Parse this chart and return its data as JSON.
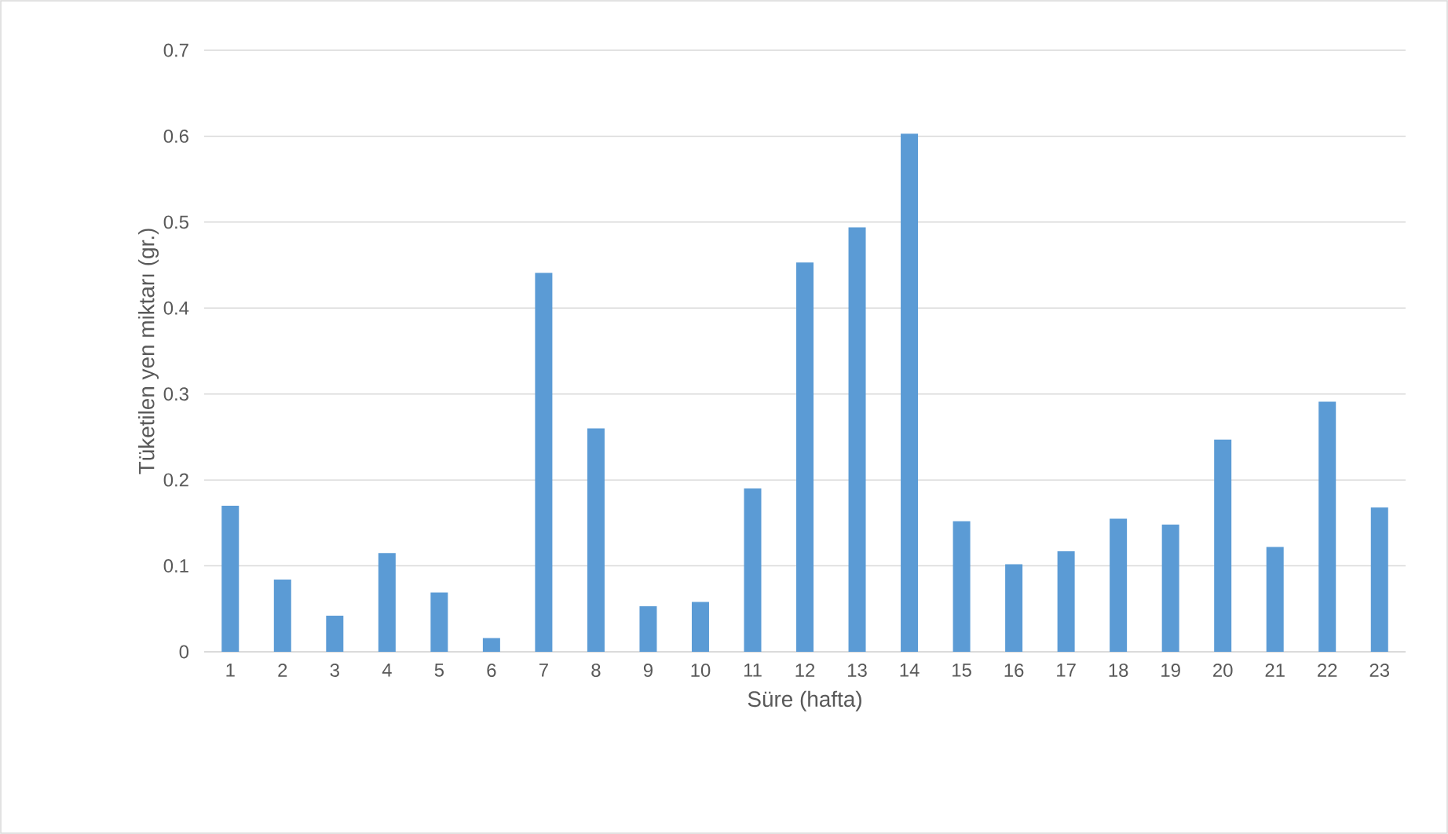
{
  "chart_data": {
    "type": "bar",
    "xlabel": "Süre (hafta)",
    "ylabel": "Tüketilen yen miktarı (gr.)",
    "categories": [
      "1",
      "2",
      "3",
      "4",
      "5",
      "6",
      "7",
      "8",
      "9",
      "10",
      "11",
      "12",
      "13",
      "14",
      "15",
      "16",
      "17",
      "18",
      "19",
      "20",
      "21",
      "22",
      "23"
    ],
    "values": [
      0.17,
      0.084,
      0.042,
      0.115,
      0.069,
      0.016,
      0.441,
      0.26,
      0.053,
      0.058,
      0.19,
      0.453,
      0.494,
      0.603,
      0.152,
      0.102,
      0.117,
      0.155,
      0.148,
      0.247,
      0.122,
      0.291,
      0.168
    ],
    "color": "#5b9bd5",
    "ylim": [
      0,
      0.7
    ],
    "yticks": [
      0,
      0.1,
      0.2,
      0.3,
      0.4,
      0.5,
      0.6,
      0.7
    ],
    "grid": "y"
  }
}
